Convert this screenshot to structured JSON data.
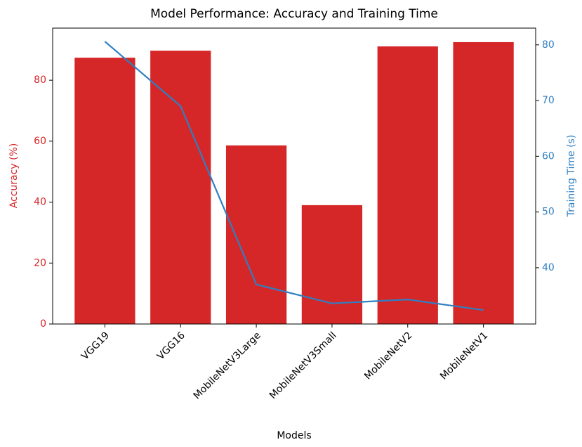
{
  "chart_data": {
    "type": "bar_line",
    "title": "Model Performance: Accuracy and Training Time",
    "xlabel": "Models",
    "ylabel": "Accuracy (%)",
    "y2label": "Training Time (s)",
    "categories": [
      "VGG19",
      "VGG16",
      "MobileNetV3Large",
      "MobileNetV3Small",
      "MobileNetV2",
      "MobileNetV1"
    ],
    "series": [
      {
        "name": "Accuracy (%)",
        "type": "bar",
        "color": "#d62728",
        "values": [
          87.4,
          89.7,
          58.6,
          39.0,
          91.1,
          92.5
        ]
      },
      {
        "name": "Training Time (s)",
        "type": "line",
        "axis": "y2",
        "color": "#2f7fc1",
        "values": [
          80.6,
          69.0,
          37.0,
          33.6,
          34.3,
          32.4
        ]
      }
    ],
    "ylim": [
      0,
      97.1
    ],
    "yticks": [
      0,
      20,
      40,
      60,
      80
    ],
    "y2lim": [
      29.9,
      83.0
    ],
    "y2ticks": [
      40,
      50,
      60,
      70,
      80
    ]
  }
}
